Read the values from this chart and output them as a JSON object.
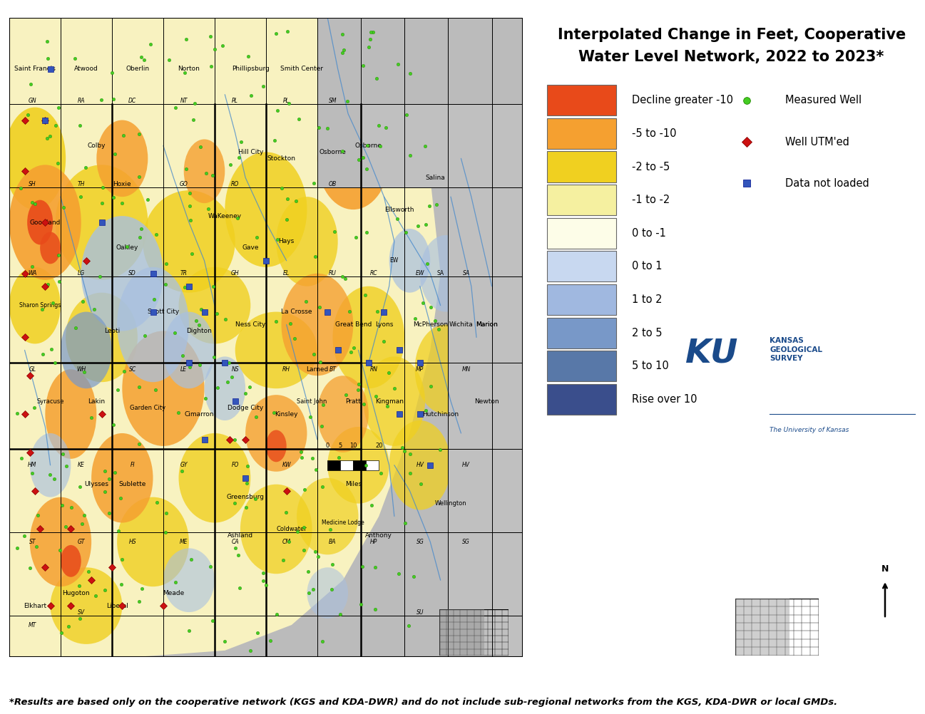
{
  "title_line1": "Interpolated Change in Feet, Cooperative",
  "title_line2": "Water Level Network, 2022 to 2023*",
  "footnote": "*Results are based only on the cooperative network (KGS and KDA-DWR) and do not include sub-regional networks from the KGS, KDA-DWR or local GMDs.",
  "legend_colors": [
    {
      "color": "#E84A1A",
      "label": "Decline greater -10"
    },
    {
      "color": "#F5A030",
      "label": "-5 to -10"
    },
    {
      "color": "#F0D020",
      "label": "-2 to -5"
    },
    {
      "color": "#F5F0A0",
      "label": "-1 to -2"
    },
    {
      "color": "#FDFDE8",
      "label": "0 to -1"
    },
    {
      "color": "#C8D8F0",
      "label": "0 to 1"
    },
    {
      "color": "#A0B8E0",
      "label": "1 to 2"
    },
    {
      "color": "#7898C8",
      "label": "2 to 5"
    },
    {
      "color": "#5878A8",
      "label": "5 to 10"
    },
    {
      "color": "#3A4E8C",
      "label": "Rise over 10"
    }
  ],
  "marker_legend": [
    {
      "marker": "o",
      "color": "#44CC22",
      "label": "Measured Well",
      "mec": "#228800"
    },
    {
      "marker": "D",
      "color": "#CC1111",
      "label": "Well UTM'ed",
      "mec": "#880000"
    },
    {
      "marker": "s",
      "color": "#3355BB",
      "label": "Data not loaded",
      "mec": "#112299"
    }
  ],
  "background_color": "#FFFFFF",
  "map_bg_active": "#CCCCCC",
  "map_bg_outside": "#AAAAAA",
  "title_fontsize": 15,
  "legend_fontsize": 10.5,
  "footnote_fontsize": 9.5,
  "ku_text_color": "#1A4A8A"
}
